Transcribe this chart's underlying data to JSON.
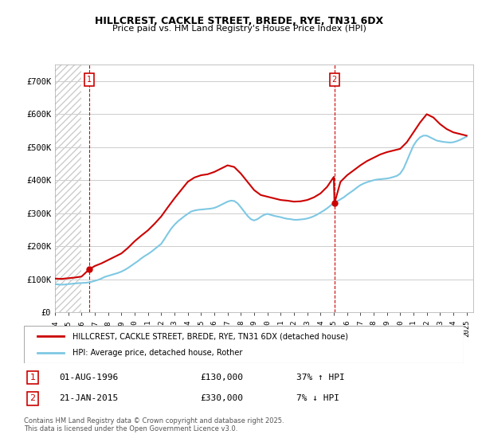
{
  "title": "HILLCREST, CACKLE STREET, BREDE, RYE, TN31 6DX",
  "subtitle": "Price paid vs. HM Land Registry's House Price Index (HPI)",
  "xlabel": "",
  "ylabel": "",
  "ylim": [
    0,
    750000
  ],
  "yticks": [
    0,
    100000,
    200000,
    300000,
    400000,
    500000,
    600000,
    700000
  ],
  "ytick_labels": [
    "£0",
    "£100K",
    "£200K",
    "£300K",
    "£400K",
    "£500K",
    "£600K",
    "£700K"
  ],
  "xlim_start": 1994.0,
  "xlim_end": 2025.5,
  "sale1_year": 1996.583,
  "sale1_price": 130000,
  "sale1_label": "1",
  "sale1_date": "01-AUG-1996",
  "sale1_pct": "37%",
  "sale1_dir": "↑",
  "sale2_year": 2015.05,
  "sale2_price": 330000,
  "sale2_label": "2",
  "sale2_date": "21-JAN-2015",
  "sale2_pct": "7%",
  "sale2_dir": "↓",
  "red_line_color": "#cc0000",
  "blue_line_color": "#7ec8e3",
  "annotation_color": "#cc0000",
  "dashed_line_color": "#cc0000",
  "bg_hatch_color": "#e8e8e8",
  "legend_label1": "HILLCREST, CACKLE STREET, BREDE, RYE, TN31 6DX (detached house)",
  "legend_label2": "HPI: Average price, detached house, Rother",
  "footer": "Contains HM Land Registry data © Crown copyright and database right 2025.\nThis data is licensed under the Open Government Licence v3.0.",
  "hpi_years": [
    1994.0,
    1994.25,
    1994.5,
    1994.75,
    1995.0,
    1995.25,
    1995.5,
    1995.75,
    1996.0,
    1996.25,
    1996.5,
    1996.75,
    1997.0,
    1997.25,
    1997.5,
    1997.75,
    1998.0,
    1998.25,
    1998.5,
    1998.75,
    1999.0,
    1999.25,
    1999.5,
    1999.75,
    2000.0,
    2000.25,
    2000.5,
    2000.75,
    2001.0,
    2001.25,
    2001.5,
    2001.75,
    2002.0,
    2002.25,
    2002.5,
    2002.75,
    2003.0,
    2003.25,
    2003.5,
    2003.75,
    2004.0,
    2004.25,
    2004.5,
    2004.75,
    2005.0,
    2005.25,
    2005.5,
    2005.75,
    2006.0,
    2006.25,
    2006.5,
    2006.75,
    2007.0,
    2007.25,
    2007.5,
    2007.75,
    2008.0,
    2008.25,
    2008.5,
    2008.75,
    2009.0,
    2009.25,
    2009.5,
    2009.75,
    2010.0,
    2010.25,
    2010.5,
    2010.75,
    2011.0,
    2011.25,
    2011.5,
    2011.75,
    2012.0,
    2012.25,
    2012.5,
    2012.75,
    2013.0,
    2013.25,
    2013.5,
    2013.75,
    2014.0,
    2014.25,
    2014.5,
    2014.75,
    2015.0,
    2015.25,
    2015.5,
    2015.75,
    2016.0,
    2016.25,
    2016.5,
    2016.75,
    2017.0,
    2017.25,
    2017.5,
    2017.75,
    2018.0,
    2018.25,
    2018.5,
    2018.75,
    2019.0,
    2019.25,
    2019.5,
    2019.75,
    2020.0,
    2020.25,
    2020.5,
    2020.75,
    2021.0,
    2021.25,
    2021.5,
    2021.75,
    2022.0,
    2022.25,
    2022.5,
    2022.75,
    2023.0,
    2023.25,
    2023.5,
    2023.75,
    2024.0,
    2024.25,
    2024.5,
    2024.75,
    2025.0
  ],
  "hpi_values": [
    85000,
    84000,
    83500,
    84000,
    85000,
    86000,
    87000,
    88000,
    88500,
    89000,
    90000,
    92000,
    95000,
    98000,
    102000,
    107000,
    110000,
    113000,
    116000,
    119000,
    123000,
    128000,
    134000,
    141000,
    148000,
    155000,
    163000,
    170000,
    176000,
    183000,
    191000,
    199000,
    207000,
    222000,
    238000,
    253000,
    265000,
    275000,
    283000,
    291000,
    298000,
    305000,
    308000,
    310000,
    311000,
    312000,
    313000,
    314000,
    316000,
    320000,
    325000,
    330000,
    335000,
    338000,
    337000,
    330000,
    318000,
    305000,
    292000,
    282000,
    278000,
    282000,
    289000,
    295000,
    298000,
    295000,
    292000,
    290000,
    288000,
    285000,
    283000,
    282000,
    280000,
    280000,
    281000,
    282000,
    284000,
    287000,
    291000,
    296000,
    302000,
    308000,
    315000,
    323000,
    330000,
    336000,
    342000,
    348000,
    356000,
    363000,
    370000,
    378000,
    385000,
    390000,
    394000,
    397000,
    400000,
    402000,
    403000,
    404000,
    405000,
    407000,
    410000,
    413000,
    420000,
    435000,
    458000,
    482000,
    505000,
    520000,
    530000,
    535000,
    535000,
    530000,
    525000,
    520000,
    518000,
    516000,
    515000,
    514000,
    515000,
    518000,
    522000,
    527000,
    532000
  ],
  "price_years": [
    1994.0,
    1994.5,
    1995.0,
    1995.5,
    1996.0,
    1996.583,
    1997.0,
    1997.5,
    1998.0,
    1998.5,
    1999.0,
    1999.5,
    2000.0,
    2000.5,
    2001.0,
    2001.5,
    2002.0,
    2002.5,
    2003.0,
    2003.5,
    2004.0,
    2004.5,
    2005.0,
    2005.5,
    2006.0,
    2006.5,
    2007.0,
    2007.5,
    2008.0,
    2008.5,
    2009.0,
    2009.5,
    2010.0,
    2010.5,
    2011.0,
    2011.5,
    2012.0,
    2012.5,
    2013.0,
    2013.5,
    2014.0,
    2014.5,
    2015.0,
    2015.05,
    2015.5,
    2016.0,
    2016.5,
    2017.0,
    2017.5,
    2018.0,
    2018.5,
    2019.0,
    2019.5,
    2020.0,
    2020.5,
    2021.0,
    2021.5,
    2022.0,
    2022.5,
    2023.0,
    2023.5,
    2024.0,
    2024.5,
    2025.0
  ],
  "price_values": [
    102000,
    101000,
    103000,
    105000,
    108000,
    130000,
    140000,
    148000,
    158000,
    168000,
    178000,
    195000,
    215000,
    232000,
    248000,
    268000,
    290000,
    318000,
    345000,
    370000,
    395000,
    408000,
    415000,
    418000,
    425000,
    435000,
    445000,
    440000,
    420000,
    395000,
    370000,
    355000,
    350000,
    345000,
    340000,
    338000,
    335000,
    336000,
    340000,
    348000,
    360000,
    380000,
    410000,
    330000,
    395000,
    415000,
    430000,
    445000,
    458000,
    468000,
    478000,
    485000,
    490000,
    495000,
    515000,
    545000,
    575000,
    600000,
    590000,
    570000,
    555000,
    545000,
    540000,
    535000
  ]
}
